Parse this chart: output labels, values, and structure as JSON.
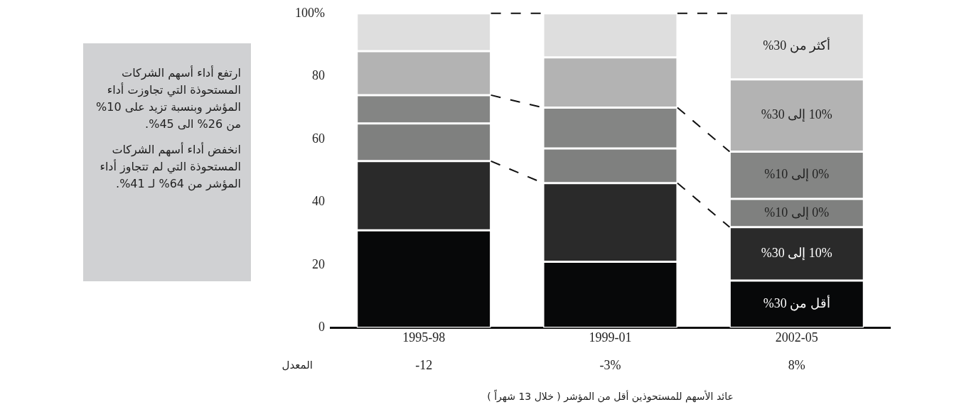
{
  "chart_data": {
    "type": "bar",
    "stacked": true,
    "xlabel": "عائد الأسهم للمستحوذين أقل من المؤشر ( خلال 13 شهراً )",
    "categories": [
      "1995-98",
      "1999-01",
      "2002-05"
    ],
    "series": [
      {
        "name": "أقل من 30%",
        "color": "#070809",
        "values": [
          31,
          21,
          15
        ]
      },
      {
        "name": "10% إلى 30%",
        "color": "#2a2a2a",
        "values": [
          22,
          25,
          17
        ]
      },
      {
        "name": "0% إلى 10%",
        "color": "#7f807f",
        "values": [
          12,
          11,
          9
        ]
      },
      {
        "name": "0% إلى 10%",
        "color": "#848584",
        "values": [
          9,
          13,
          15
        ]
      },
      {
        "name": "10% إلى 30%",
        "color": "#b3b3b3",
        "values": [
          14,
          16,
          23
        ]
      },
      {
        "name": "أكثر من 30%",
        "color": "#dedede",
        "values": [
          12,
          14,
          21
        ]
      }
    ],
    "ylim": [
      0,
      100
    ],
    "yticks": [
      0,
      20,
      40,
      60,
      80,
      {
        "value": 100,
        "label": "100%"
      }
    ],
    "grid": false,
    "legend": false,
    "annotations": [
      "-12",
      "-3%",
      "8%",
      "المعدل",
      "ارتفع أداء أسهم الشركات المستحوذة التي تجاوزت أداء المؤشر وبنسبة تزيد على 10% من 26% الى 45%.",
      "انخفض أداء أسهم الشركات المستحوذة التي لم تتجاوز أداء المؤشر من 64% لـ 41%."
    ]
  }
}
